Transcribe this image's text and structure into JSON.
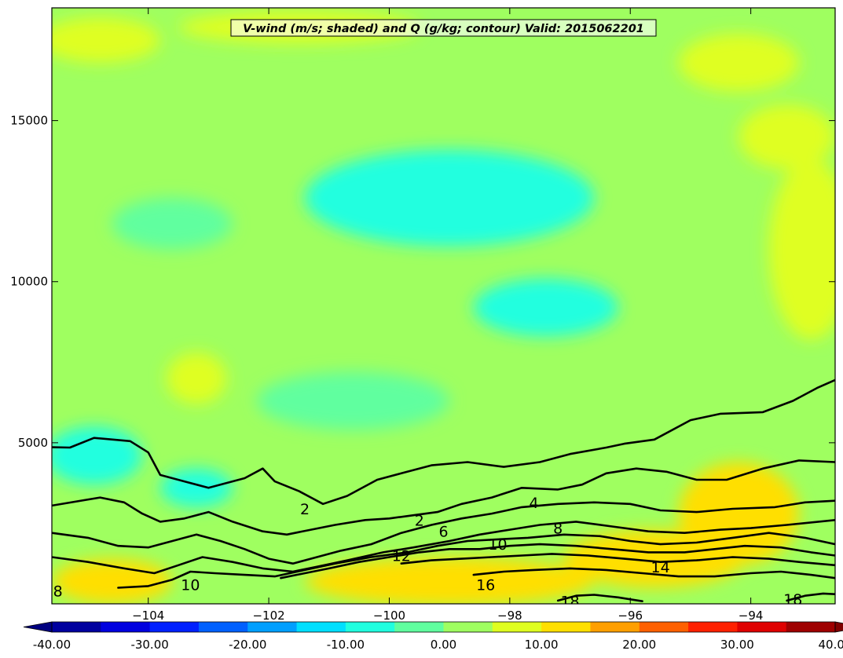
{
  "chart_data": {
    "type": "heatmap",
    "title": "V-wind (m/s; shaded) and Q (g/kg; contour) Valid: 2015062201",
    "xlabel": "",
    "ylabel": "",
    "xlim": [
      -105.6,
      -92.6
    ],
    "ylim": [
      0,
      18500
    ],
    "x_ticks": [
      -104,
      -102,
      -100,
      -98,
      -96,
      -94
    ],
    "x_tick_labels": [
      "−104",
      "−102",
      "−100",
      "−98",
      "−96",
      "−94"
    ],
    "y_ticks": [
      5000,
      10000,
      15000
    ],
    "y_tick_labels": [
      "5000",
      "10000",
      "15000"
    ],
    "colorbar": {
      "orientation": "horizontal",
      "range": [
        -40,
        40
      ],
      "step": 5,
      "extend": "both",
      "tick_values": [
        -40,
        -30,
        -20,
        -10,
        0,
        10,
        20,
        30,
        40
      ],
      "tick_labels": [
        "-40.00",
        "-30.00",
        "-20.00",
        "-10.00",
        "0.00",
        "10.00",
        "20.00",
        "30.00",
        "40.00"
      ]
    },
    "shaded_field": {
      "name": "V-wind (m/s)",
      "background_value": 1.5,
      "regions": [
        {
          "label": "upper-left band",
          "center": [
            -104.8,
            17500
          ],
          "radius": [
            1.0,
            700
          ],
          "value": 7.5
        },
        {
          "label": "upper center band",
          "center": [
            -101.5,
            17900
          ],
          "radius": [
            2.0,
            500
          ],
          "value": 7.5
        },
        {
          "label": "upper right",
          "center": [
            -94.2,
            16800
          ],
          "radius": [
            1.0,
            900
          ],
          "value": 5.5
        },
        {
          "label": "jet-level minimum",
          "center": [
            -99.0,
            12600
          ],
          "radius": [
            2.4,
            1500
          ],
          "value": -5.5
        },
        {
          "label": "mid-level minimum",
          "center": [
            -97.4,
            9200
          ],
          "radius": [
            1.2,
            900
          ],
          "value": -5.5
        },
        {
          "label": "left mid minimum",
          "center": [
            -103.6,
            11800
          ],
          "radius": [
            1.0,
            800
          ],
          "value": -3.5
        },
        {
          "label": "lower mid minimum",
          "center": [
            -100.6,
            6300
          ],
          "radius": [
            1.6,
            900
          ],
          "value": -4.0
        },
        {
          "label": "right positive",
          "center": [
            -93.0,
            11000
          ],
          "radius": [
            0.7,
            2800
          ],
          "value": 8.5
        },
        {
          "label": "right positive upper",
          "center": [
            -93.4,
            14500
          ],
          "radius": [
            0.8,
            1000
          ],
          "value": 6.0
        },
        {
          "label": "left low-level minimum",
          "center": [
            -104.9,
            4600
          ],
          "radius": [
            0.8,
            900
          ],
          "value": -9.0
        },
        {
          "label": "left low-level minimum 2",
          "center": [
            -103.2,
            3600
          ],
          "radius": [
            0.6,
            600
          ],
          "value": -6.0
        },
        {
          "label": "left mid positive",
          "center": [
            -103.2,
            7000
          ],
          "radius": [
            0.5,
            800
          ],
          "value": 5.5
        },
        {
          "label": "boundary-layer jet left",
          "center": [
            -104.6,
            700
          ],
          "radius": [
            1.0,
            700
          ],
          "value": 11.5
        },
        {
          "label": "boundary-layer jet center",
          "center": [
            -99.0,
            700
          ],
          "radius": [
            2.4,
            750
          ],
          "value": 12.5
        },
        {
          "label": "boundary-layer jet right",
          "center": [
            -94.2,
            2800
          ],
          "radius": [
            1.0,
            1600
          ],
          "value": 13.0
        },
        {
          "label": "right low-level",
          "center": [
            -95.6,
            1400
          ],
          "radius": [
            1.5,
            900
          ],
          "value": 10.0
        }
      ]
    },
    "contours": {
      "name": "Q (g/kg)",
      "lines": [
        {
          "level": 2,
          "points": [
            [
              -105.6,
              4860
            ],
            [
              -105.3,
              4850
            ],
            [
              -104.9,
              5150
            ],
            [
              -104.3,
              5050
            ],
            [
              -104.0,
              4700
            ],
            [
              -103.8,
              4000
            ],
            [
              -103.4,
              3800
            ],
            [
              -103.0,
              3600
            ],
            [
              -102.4,
              3900
            ],
            [
              -102.1,
              4200
            ],
            [
              -101.9,
              3800
            ],
            [
              -101.5,
              3500
            ],
            [
              -101.1,
              3100
            ],
            [
              -100.7,
              3350
            ],
            [
              -100.2,
              3850
            ],
            [
              -99.8,
              4050
            ],
            [
              -99.3,
              4300
            ],
            [
              -98.7,
              4400
            ],
            [
              -98.1,
              4250
            ],
            [
              -97.5,
              4400
            ],
            [
              -97.0,
              4650
            ],
            [
              -96.4,
              4850
            ],
            [
              -96.1,
              4970
            ],
            [
              -95.6,
              5100
            ],
            [
              -95.0,
              5700
            ],
            [
              -94.5,
              5900
            ],
            [
              -93.8,
              5950
            ],
            [
              -93.3,
              6300
            ],
            [
              -92.9,
              6700
            ],
            [
              -92.6,
              6950
            ]
          ]
        },
        {
          "level": 4,
          "points": [
            [
              -105.6,
              3050
            ],
            [
              -104.8,
              3300
            ],
            [
              -104.4,
              3150
            ],
            [
              -104.1,
              2800
            ],
            [
              -103.8,
              2550
            ],
            [
              -103.4,
              2650
            ],
            [
              -103.0,
              2850
            ],
            [
              -102.6,
              2550
            ],
            [
              -102.1,
              2250
            ],
            [
              -101.7,
              2150
            ],
            [
              -101.3,
              2300
            ],
            [
              -100.9,
              2450
            ],
            [
              -100.4,
              2600
            ],
            [
              -100.0,
              2650
            ],
            [
              -99.6,
              2750
            ],
            [
              -99.2,
              2850
            ],
            [
              -98.8,
              3100
            ],
            [
              -98.3,
              3300
            ],
            [
              -97.8,
              3600
            ],
            [
              -97.2,
              3550
            ],
            [
              -96.8,
              3700
            ],
            [
              -96.4,
              4050
            ],
            [
              -95.9,
              4200
            ],
            [
              -95.4,
              4100
            ],
            [
              -94.9,
              3850
            ],
            [
              -94.4,
              3850
            ],
            [
              -93.8,
              4200
            ],
            [
              -93.2,
              4450
            ],
            [
              -92.6,
              4400
            ]
          ]
        },
        {
          "level": 6,
          "points": [
            [
              -105.6,
              2200
            ],
            [
              -105.0,
              2050
            ],
            [
              -104.5,
              1800
            ],
            [
              -104.0,
              1750
            ],
            [
              -103.6,
              1950
            ],
            [
              -103.2,
              2150
            ],
            [
              -102.8,
              1950
            ],
            [
              -102.4,
              1700
            ],
            [
              -102.0,
              1400
            ],
            [
              -101.6,
              1250
            ],
            [
              -101.2,
              1450
            ],
            [
              -100.8,
              1650
            ],
            [
              -100.3,
              1850
            ],
            [
              -99.8,
              2200
            ],
            [
              -99.3,
              2450
            ],
            [
              -98.8,
              2650
            ],
            [
              -98.3,
              2800
            ],
            [
              -97.8,
              3000
            ],
            [
              -97.2,
              3100
            ],
            [
              -96.6,
              3150
            ],
            [
              -96.0,
              3100
            ],
            [
              -95.5,
              2900
            ],
            [
              -94.9,
              2850
            ],
            [
              -94.3,
              2950
            ],
            [
              -93.6,
              3000
            ],
            [
              -93.1,
              3150
            ],
            [
              -92.6,
              3200
            ]
          ]
        },
        {
          "level": 8,
          "points": [
            [
              -105.6,
              1450
            ],
            [
              -105.0,
              1300
            ],
            [
              -104.4,
              1100
            ],
            [
              -103.9,
              950
            ],
            [
              -103.5,
              1200
            ],
            [
              -103.1,
              1450
            ],
            [
              -102.6,
              1300
            ],
            [
              -102.1,
              1100
            ],
            [
              -101.6,
              1000
            ],
            [
              -101.2,
              1150
            ],
            [
              -100.7,
              1350
            ],
            [
              -100.1,
              1600
            ],
            [
              -99.6,
              1750
            ],
            [
              -99.0,
              1950
            ],
            [
              -98.5,
              2150
            ],
            [
              -98.0,
              2300
            ],
            [
              -97.5,
              2450
            ],
            [
              -96.9,
              2550
            ],
            [
              -96.3,
              2400
            ],
            [
              -95.7,
              2250
            ],
            [
              -95.1,
              2200
            ],
            [
              -94.5,
              2300
            ],
            [
              -94.0,
              2350
            ],
            [
              -93.4,
              2450
            ],
            [
              -92.6,
              2600
            ]
          ]
        },
        {
          "level": 10,
          "points": [
            [
              -104.5,
              500
            ],
            [
              -104.0,
              550
            ],
            [
              -103.6,
              750
            ],
            [
              -103.3,
              1000
            ],
            [
              -102.9,
              950
            ],
            [
              -102.4,
              900
            ],
            [
              -101.9,
              850
            ],
            [
              -101.4,
              1050
            ],
            [
              -100.9,
              1250
            ],
            [
              -100.3,
              1450
            ],
            [
              -99.7,
              1600
            ],
            [
              -99.2,
              1800
            ],
            [
              -98.7,
              1950
            ],
            [
              -98.2,
              2000
            ],
            [
              -97.7,
              2050
            ],
            [
              -97.1,
              2150
            ],
            [
              -96.5,
              2100
            ],
            [
              -96.0,
              1950
            ],
            [
              -95.5,
              1850
            ],
            [
              -94.9,
              1900
            ],
            [
              -94.3,
              2050
            ],
            [
              -93.7,
              2200
            ],
            [
              -93.1,
              2050
            ],
            [
              -92.6,
              1850
            ]
          ]
        },
        {
          "level": 12,
          "points": [
            [
              -101.8,
              800
            ],
            [
              -101.4,
              950
            ],
            [
              -101.0,
              1100
            ],
            [
              -100.5,
              1300
            ],
            [
              -100.0,
              1450
            ],
            [
              -99.5,
              1600
            ],
            [
              -99.0,
              1700
            ],
            [
              -98.5,
              1700
            ],
            [
              -98.0,
              1800
            ],
            [
              -97.5,
              1850
            ],
            [
              -96.9,
              1800
            ],
            [
              -96.3,
              1700
            ],
            [
              -95.7,
              1600
            ],
            [
              -95.1,
              1600
            ],
            [
              -94.6,
              1700
            ],
            [
              -94.1,
              1800
            ],
            [
              -93.5,
              1750
            ],
            [
              -93.0,
              1600
            ],
            [
              -92.6,
              1500
            ]
          ]
        },
        {
          "level": 14,
          "points": [
            [
              -99.8,
              1250
            ],
            [
              -99.3,
              1350
            ],
            [
              -98.8,
              1400
            ],
            [
              -98.3,
              1450
            ],
            [
              -97.8,
              1500
            ],
            [
              -97.3,
              1550
            ],
            [
              -96.7,
              1500
            ],
            [
              -96.1,
              1400
            ],
            [
              -95.5,
              1300
            ],
            [
              -94.9,
              1350
            ],
            [
              -94.3,
              1450
            ],
            [
              -93.7,
              1400
            ],
            [
              -93.2,
              1300
            ],
            [
              -92.6,
              1200
            ]
          ]
        },
        {
          "level": 16,
          "points": [
            [
              -98.6,
              900
            ],
            [
              -98.1,
              1000
            ],
            [
              -97.6,
              1050
            ],
            [
              -97.0,
              1100
            ],
            [
              -96.4,
              1050
            ],
            [
              -95.8,
              950
            ],
            [
              -95.2,
              850
            ],
            [
              -94.6,
              850
            ],
            [
              -94.0,
              950
            ],
            [
              -93.5,
              1000
            ],
            [
              -93.0,
              900
            ],
            [
              -92.6,
              800
            ]
          ]
        },
        {
          "level": 18,
          "points": [
            [
              -97.2,
              100
            ],
            [
              -96.9,
              250
            ],
            [
              -96.6,
              280
            ],
            [
              -96.2,
              200
            ],
            [
              -95.8,
              80
            ]
          ]
        },
        {
          "level": 18,
          "points": [
            [
              -93.4,
              100
            ],
            [
              -93.1,
              250
            ],
            [
              -92.8,
              320
            ],
            [
              -92.6,
              300
            ]
          ]
        }
      ],
      "labels": [
        {
          "text": "2",
          "x": -101.4,
          "y": 2950
        },
        {
          "text": "2",
          "x": -99.5,
          "y": 2600
        },
        {
          "text": "4",
          "x": -97.6,
          "y": 3150
        },
        {
          "text": "6",
          "x": -99.1,
          "y": 2250
        },
        {
          "text": "8",
          "x": -97.2,
          "y": 2350
        },
        {
          "text": "8",
          "x": -105.5,
          "y": 400
        },
        {
          "text": "10",
          "x": -98.2,
          "y": 1850
        },
        {
          "text": "10",
          "x": -103.3,
          "y": 600
        },
        {
          "text": "12",
          "x": -99.8,
          "y": 1500
        },
        {
          "text": "14",
          "x": -95.5,
          "y": 1150
        },
        {
          "text": "16",
          "x": -98.4,
          "y": 600
        },
        {
          "text": "18",
          "x": -97.0,
          "y": 80
        },
        {
          "text": "18",
          "x": -93.3,
          "y": 150
        }
      ]
    }
  }
}
